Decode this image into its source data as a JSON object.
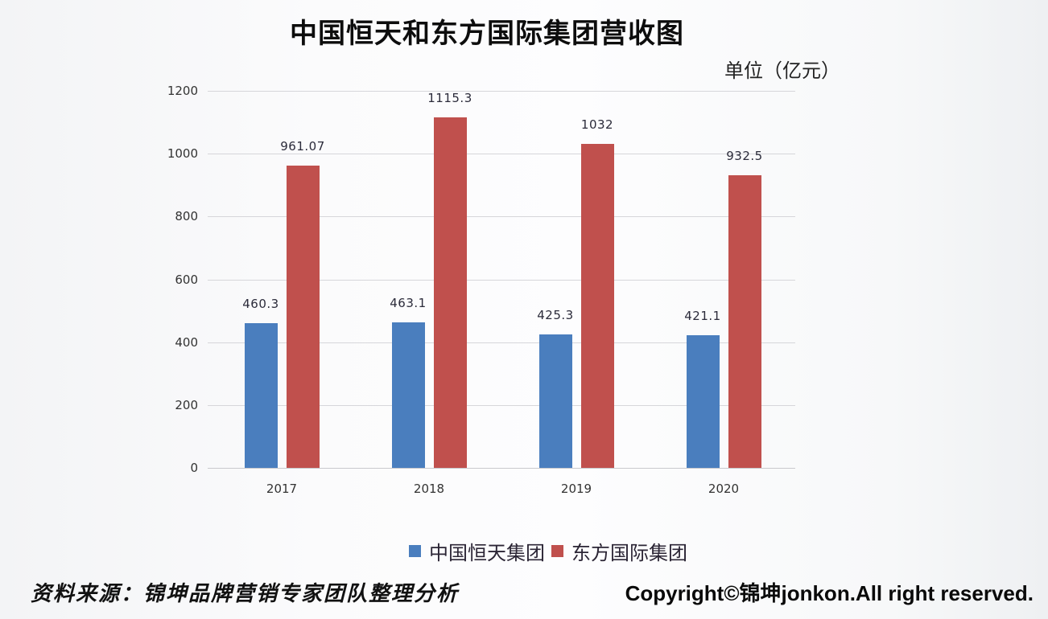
{
  "header": {
    "title": "中国恒天和东方国际集团营收图",
    "unit": "单位（亿元）"
  },
  "footer": {
    "source": "资料来源：锦坤品牌营销专家团队整理分析",
    "copyright": "Copyright©锦坤jonkon.All right reserved."
  },
  "colors": {
    "series_0": "#4a7ebe",
    "series_1": "#c0504d",
    "grid": "#d6d6da"
  },
  "chart_data": {
    "type": "bar",
    "title": "中国恒天和东方国际集团营收图",
    "subtitle": "单位（亿元）",
    "xlabel": "",
    "ylabel": "",
    "categories": [
      "2017",
      "2018",
      "2019",
      "2020"
    ],
    "series": [
      {
        "name": "中国恒天集团",
        "values": [
          460.3,
          463.1,
          425.3,
          421.1
        ],
        "labels": [
          "460.3",
          "463.1",
          "425.3",
          "421.1"
        ],
        "color": "#4a7ebe"
      },
      {
        "name": "东方国际集团",
        "values": [
          961.07,
          1115.3,
          1032,
          932.5
        ],
        "labels": [
          "961.07",
          "1115.3",
          "1032",
          "932.5"
        ],
        "color": "#c0504d"
      }
    ],
    "ylim": [
      0,
      1200
    ],
    "yticks": [
      "0",
      "200",
      "400",
      "600",
      "800",
      "1000",
      "1200"
    ],
    "grid": true,
    "legend_position": "bottom"
  },
  "legend": {
    "items": [
      {
        "label": "中国恒天集团",
        "icon": "square-swatch-blue"
      },
      {
        "label": "东方国际集团",
        "icon": "square-swatch-red"
      }
    ]
  }
}
